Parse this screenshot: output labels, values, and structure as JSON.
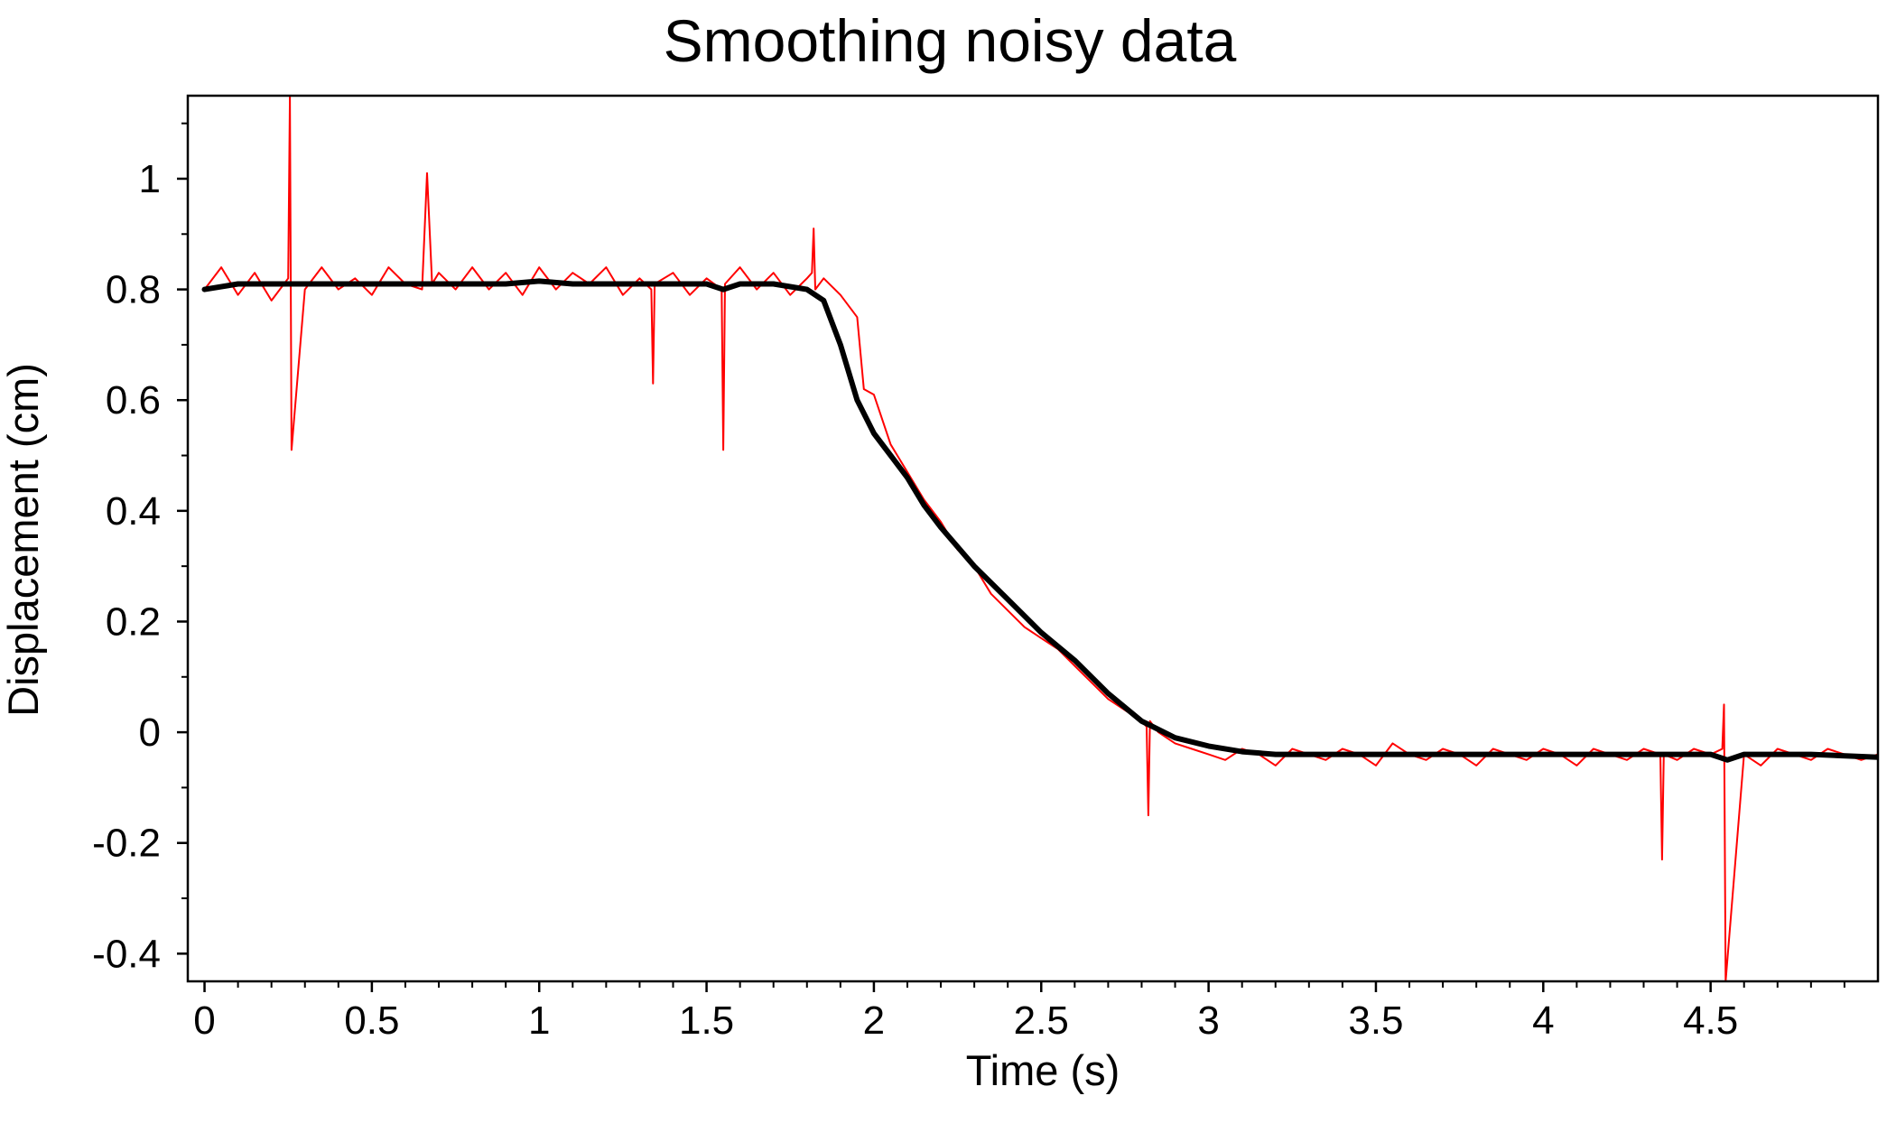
{
  "chart_data": {
    "type": "line",
    "title": "Smoothing noisy data",
    "xlabel": "Time (s)",
    "ylabel": "Displacement (cm)",
    "xlim": [
      -0.05,
      5.0
    ],
    "ylim": [
      -0.45,
      1.15
    ],
    "x_ticks": [
      {
        "value": 0,
        "label": "0"
      },
      {
        "value": 0.5,
        "label": "0.5"
      },
      {
        "value": 1,
        "label": "1"
      },
      {
        "value": 1.5,
        "label": "1.5"
      },
      {
        "value": 2,
        "label": "2"
      },
      {
        "value": 2.5,
        "label": "2.5"
      },
      {
        "value": 3,
        "label": "3"
      },
      {
        "value": 3.5,
        "label": "3.5"
      },
      {
        "value": 4,
        "label": "4"
      },
      {
        "value": 4.5,
        "label": "4.5"
      }
    ],
    "y_ticks": [
      {
        "value": 1,
        "label": "1"
      },
      {
        "value": 0.8,
        "label": "0.8"
      },
      {
        "value": 0.6,
        "label": "0.6"
      },
      {
        "value": 0.4,
        "label": "0.4"
      },
      {
        "value": 0.2,
        "label": "0.2"
      },
      {
        "value": 0,
        "label": "0"
      },
      {
        "value": -0.2,
        "label": "-0.2"
      },
      {
        "value": -0.4,
        "label": "-0.4"
      }
    ],
    "grid": false,
    "legend": "none",
    "series": [
      {
        "role": "raw",
        "color": "#ff0000",
        "x": [
          0,
          0.05,
          0.1,
          0.15,
          0.2,
          0.25,
          0.255,
          0.26,
          0.3,
          0.35,
          0.4,
          0.45,
          0.5,
          0.55,
          0.6,
          0.65,
          0.665,
          0.68,
          0.7,
          0.75,
          0.8,
          0.85,
          0.9,
          0.95,
          1.0,
          1.05,
          1.1,
          1.15,
          1.2,
          1.25,
          1.3,
          1.335,
          1.34,
          1.345,
          1.4,
          1.45,
          1.5,
          1.545,
          1.55,
          1.555,
          1.6,
          1.65,
          1.7,
          1.75,
          1.8,
          1.815,
          1.82,
          1.825,
          1.85,
          1.9,
          1.95,
          1.97,
          2.0,
          2.05,
          2.1,
          2.15,
          2.2,
          2.25,
          2.3,
          2.35,
          2.4,
          2.45,
          2.5,
          2.55,
          2.6,
          2.65,
          2.7,
          2.75,
          2.8,
          2.815,
          2.82,
          2.825,
          2.85,
          2.9,
          2.95,
          3.0,
          3.05,
          3.1,
          3.15,
          3.2,
          3.25,
          3.3,
          3.35,
          3.4,
          3.45,
          3.5,
          3.55,
          3.6,
          3.65,
          3.7,
          3.75,
          3.8,
          3.85,
          3.9,
          3.95,
          4.0,
          4.05,
          4.1,
          4.15,
          4.2,
          4.25,
          4.3,
          4.35,
          4.355,
          4.36,
          4.4,
          4.45,
          4.5,
          4.535,
          4.54,
          4.545,
          4.6,
          4.65,
          4.7,
          4.75,
          4.8,
          4.85,
          4.9,
          4.95,
          5.0
        ],
        "y": [
          0.8,
          0.84,
          0.79,
          0.83,
          0.78,
          0.82,
          1.15,
          0.51,
          0.8,
          0.84,
          0.8,
          0.82,
          0.79,
          0.84,
          0.81,
          0.8,
          1.01,
          0.81,
          0.83,
          0.8,
          0.84,
          0.8,
          0.83,
          0.79,
          0.84,
          0.8,
          0.83,
          0.81,
          0.84,
          0.79,
          0.82,
          0.8,
          0.63,
          0.81,
          0.83,
          0.79,
          0.82,
          0.8,
          0.51,
          0.81,
          0.84,
          0.8,
          0.83,
          0.79,
          0.82,
          0.83,
          0.91,
          0.8,
          0.82,
          0.79,
          0.75,
          0.62,
          0.61,
          0.52,
          0.47,
          0.42,
          0.38,
          0.33,
          0.3,
          0.25,
          0.22,
          0.19,
          0.17,
          0.15,
          0.12,
          0.09,
          0.06,
          0.04,
          0.02,
          0.01,
          -0.15,
          0.02,
          0.0,
          -0.02,
          -0.03,
          -0.04,
          -0.05,
          -0.03,
          -0.04,
          -0.06,
          -0.03,
          -0.04,
          -0.05,
          -0.03,
          -0.04,
          -0.06,
          -0.02,
          -0.04,
          -0.05,
          -0.03,
          -0.04,
          -0.06,
          -0.03,
          -0.04,
          -0.05,
          -0.03,
          -0.04,
          -0.06,
          -0.03,
          -0.04,
          -0.05,
          -0.03,
          -0.04,
          -0.23,
          -0.04,
          -0.05,
          -0.03,
          -0.04,
          -0.03,
          0.05,
          -0.45,
          -0.04,
          -0.06,
          -0.03,
          -0.04,
          -0.05,
          -0.03,
          -0.04,
          -0.05,
          -0.04
        ]
      },
      {
        "role": "smoothed",
        "color": "#000000",
        "x": [
          0,
          0.1,
          0.2,
          0.3,
          0.4,
          0.5,
          0.6,
          0.7,
          0.8,
          0.9,
          1.0,
          1.1,
          1.2,
          1.3,
          1.4,
          1.5,
          1.55,
          1.6,
          1.7,
          1.8,
          1.85,
          1.9,
          1.95,
          2.0,
          2.05,
          2.1,
          2.15,
          2.2,
          2.3,
          2.4,
          2.5,
          2.6,
          2.7,
          2.8,
          2.9,
          3.0,
          3.1,
          3.2,
          3.3,
          3.4,
          3.5,
          3.6,
          3.8,
          4.0,
          4.2,
          4.4,
          4.5,
          4.55,
          4.6,
          4.8,
          5.0
        ],
        "y": [
          0.8,
          0.81,
          0.81,
          0.81,
          0.81,
          0.81,
          0.81,
          0.81,
          0.81,
          0.81,
          0.815,
          0.81,
          0.81,
          0.81,
          0.81,
          0.81,
          0.8,
          0.81,
          0.81,
          0.8,
          0.78,
          0.7,
          0.6,
          0.54,
          0.5,
          0.46,
          0.41,
          0.37,
          0.3,
          0.24,
          0.18,
          0.13,
          0.07,
          0.02,
          -0.01,
          -0.025,
          -0.035,
          -0.04,
          -0.04,
          -0.04,
          -0.04,
          -0.04,
          -0.04,
          -0.04,
          -0.04,
          -0.04,
          -0.04,
          -0.05,
          -0.04,
          -0.04,
          -0.045
        ]
      }
    ]
  }
}
